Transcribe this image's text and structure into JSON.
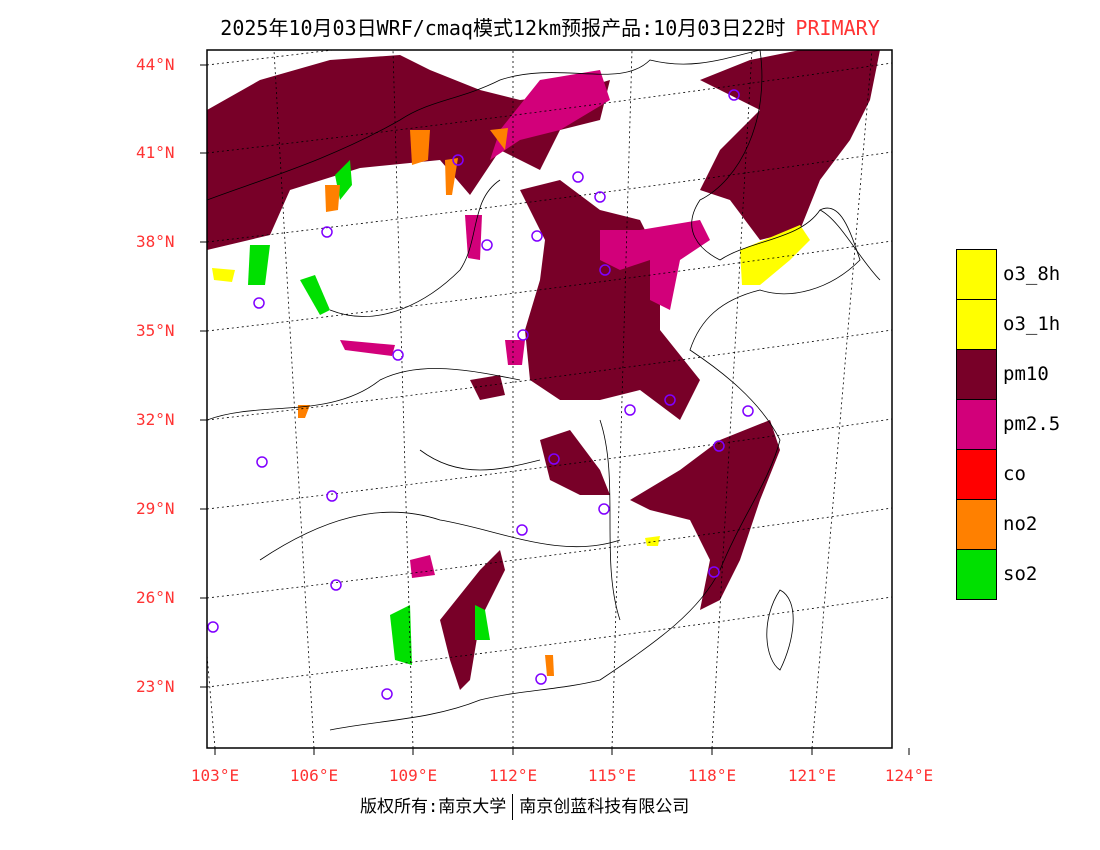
{
  "title": {
    "text": "2025年10月03日WRF/cmaq模式12km预报产品:10月03日22时",
    "mode": "PRIMARY"
  },
  "lat_labels": [
    "44°N",
    "41°N",
    "38°N",
    "35°N",
    "32°N",
    "29°N",
    "26°N",
    "23°N"
  ],
  "lon_labels": [
    "103°E",
    "106°E",
    "109°E",
    "112°E",
    "115°E",
    "118°E",
    "121°E",
    "124°E"
  ],
  "legend": [
    {
      "label": "o3_8h",
      "color": "#ffff00"
    },
    {
      "label": "o3_1h",
      "color": "#ffff00"
    },
    {
      "label": "pm10",
      "color": "#780028"
    },
    {
      "label": "pm2.5",
      "color": "#d2007a"
    },
    {
      "label": "co",
      "color": "#ff0000"
    },
    {
      "label": "no2",
      "color": "#ff8000"
    },
    {
      "label": "so2",
      "color": "#00e000"
    }
  ],
  "footer": {
    "left": "版权所有:南京大学",
    "right": "南京创蓝科技有限公司"
  },
  "colors": {
    "station": "#8000ff",
    "axis_label": "#ff3333"
  }
}
